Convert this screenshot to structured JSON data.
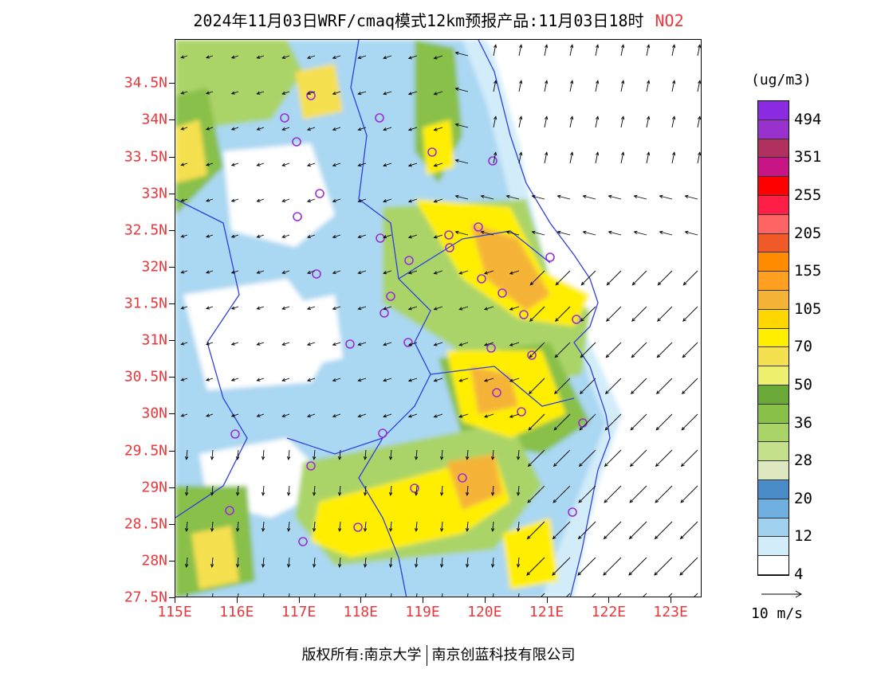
{
  "title": {
    "main": "2024年11月03日WRF/cmaq模式12km预报产品:11月03日18时",
    "species": "NO2"
  },
  "map": {
    "lat_labels": [
      "34.5N",
      "34N",
      "33.5N",
      "33N",
      "32.5N",
      "32N",
      "31.5N",
      "31N",
      "30.5N",
      "30N",
      "29.5N",
      "29N",
      "28.5N",
      "28N",
      "27.5N"
    ],
    "lon_labels": [
      "115E",
      "116E",
      "117E",
      "118E",
      "119E",
      "120E",
      "121E",
      "122E",
      "123E"
    ],
    "lat_range": [
      27.5,
      35.1
    ],
    "lon_range": [
      115,
      123.5
    ],
    "boundary_color": "#2f3fe0",
    "station_marker_color": "#9b2fd6"
  },
  "legend": {
    "unit": "(ug/m3)",
    "labels": [
      "494",
      "351",
      "255",
      "205",
      "155",
      "105",
      "70",
      "50",
      "36",
      "28",
      "20",
      "12",
      "4"
    ],
    "colors": [
      "#8a2be2",
      "#9932cc",
      "#b03060",
      "#c71585",
      "#ff0000",
      "#ff1e46",
      "#ff6464",
      "#f05a28",
      "#ff8c00",
      "#ffa020",
      "#f5b438",
      "#ffd700",
      "#ffee00",
      "#f5e050",
      "#eef070",
      "#6aa838",
      "#88c048",
      "#aad468",
      "#c4e08a",
      "#dde8c0",
      "#4a8cc8",
      "#70b0e0",
      "#a0d2f0",
      "#d2ecfa",
      "#ffffff"
    ],
    "wind_scale": "10 m/s"
  },
  "footer": {
    "left": "版权所有:南京大学",
    "right": "南京创蓝科技有限公司"
  }
}
